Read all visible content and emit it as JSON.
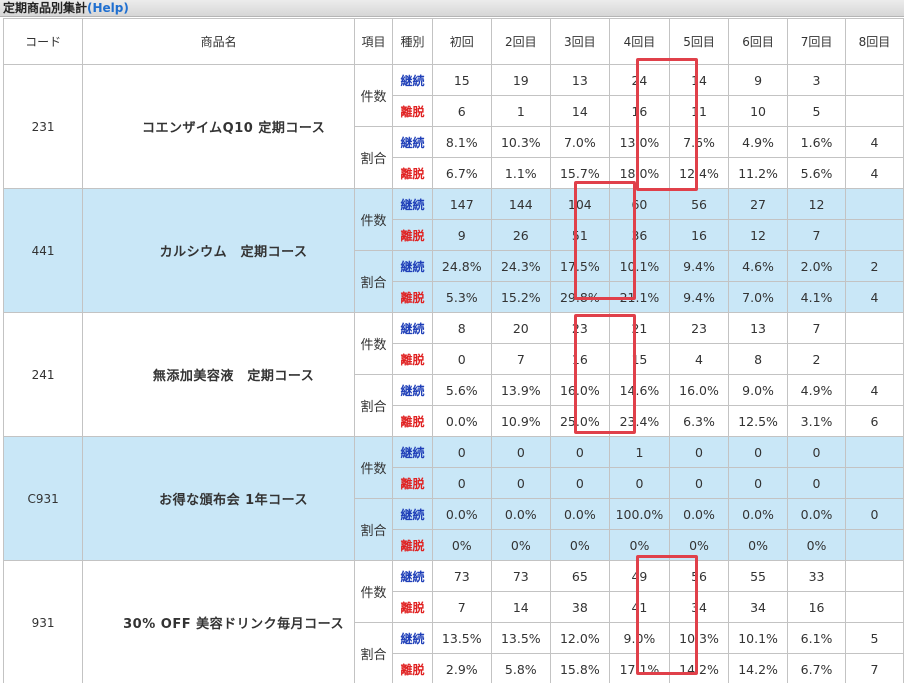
{
  "window": {
    "title": "定期商品別集計",
    "help": "(Help)"
  },
  "headers": [
    "コード",
    "商品名",
    "項目",
    "種別",
    "初回",
    "2回目",
    "3回目",
    "4回目",
    "5回目",
    "6回目",
    "7回目",
    "8回目"
  ],
  "groups": [
    {
      "code": "231",
      "name": "コエンザイムQ10 定期コース",
      "bg": "white",
      "rows": [
        {
          "item": "件数",
          "kind": "継続",
          "vals": [
            "15",
            "19",
            "13",
            "24",
            "14",
            "9",
            "3",
            ""
          ]
        },
        {
          "item": "件数",
          "kind": "離脱",
          "vals": [
            "6",
            "1",
            "14",
            "16",
            "11",
            "10",
            "5",
            ""
          ]
        },
        {
          "item": "割合",
          "kind": "継続",
          "vals": [
            "8.1%",
            "10.3%",
            "7.0%",
            "13.0%",
            "7.6%",
            "4.9%",
            "1.6%",
            "4"
          ]
        },
        {
          "item": "割合",
          "kind": "離脱",
          "vals": [
            "6.7%",
            "1.1%",
            "15.7%",
            "18.0%",
            "12.4%",
            "11.2%",
            "5.6%",
            "4"
          ]
        }
      ]
    },
    {
      "code": "441",
      "name": "カルシウム　定期コース",
      "bg": "blue",
      "rows": [
        {
          "item": "件数",
          "kind": "継続",
          "vals": [
            "147",
            "144",
            "104",
            "60",
            "56",
            "27",
            "12",
            ""
          ]
        },
        {
          "item": "件数",
          "kind": "離脱",
          "vals": [
            "9",
            "26",
            "51",
            "36",
            "16",
            "12",
            "7",
            ""
          ]
        },
        {
          "item": "割合",
          "kind": "継続",
          "vals": [
            "24.8%",
            "24.3%",
            "17.5%",
            "10.1%",
            "9.4%",
            "4.6%",
            "2.0%",
            "2"
          ]
        },
        {
          "item": "割合",
          "kind": "離脱",
          "vals": [
            "5.3%",
            "15.2%",
            "29.8%",
            "21.1%",
            "9.4%",
            "7.0%",
            "4.1%",
            "4"
          ]
        }
      ]
    },
    {
      "code": "241",
      "name": "無添加美容液　定期コース",
      "bg": "white",
      "rows": [
        {
          "item": "件数",
          "kind": "継続",
          "vals": [
            "8",
            "20",
            "23",
            "21",
            "23",
            "13",
            "7",
            ""
          ]
        },
        {
          "item": "件数",
          "kind": "離脱",
          "vals": [
            "0",
            "7",
            "16",
            "15",
            "4",
            "8",
            "2",
            ""
          ]
        },
        {
          "item": "割合",
          "kind": "継続",
          "vals": [
            "5.6%",
            "13.9%",
            "16.0%",
            "14.6%",
            "16.0%",
            "9.0%",
            "4.9%",
            "4"
          ]
        },
        {
          "item": "割合",
          "kind": "離脱",
          "vals": [
            "0.0%",
            "10.9%",
            "25.0%",
            "23.4%",
            "6.3%",
            "12.5%",
            "3.1%",
            "6"
          ]
        }
      ]
    },
    {
      "code": "C931",
      "name": "お得な頒布会 1年コース",
      "bg": "blue",
      "rows": [
        {
          "item": "件数",
          "kind": "継続",
          "vals": [
            "0",
            "0",
            "0",
            "1",
            "0",
            "0",
            "0",
            ""
          ]
        },
        {
          "item": "件数",
          "kind": "離脱",
          "vals": [
            "0",
            "0",
            "0",
            "0",
            "0",
            "0",
            "0",
            ""
          ]
        },
        {
          "item": "割合",
          "kind": "継続",
          "vals": [
            "0.0%",
            "0.0%",
            "0.0%",
            "100.0%",
            "0.0%",
            "0.0%",
            "0.0%",
            "0"
          ]
        },
        {
          "item": "割合",
          "kind": "離脱",
          "vals": [
            "0%",
            "0%",
            "0%",
            "0%",
            "0%",
            "0%",
            "0%",
            ""
          ]
        }
      ]
    },
    {
      "code": "931",
      "name": "30% OFF 美容ドリンク毎月コース",
      "bg": "white",
      "rows": [
        {
          "item": "件数",
          "kind": "継続",
          "vals": [
            "73",
            "73",
            "65",
            "49",
            "56",
            "55",
            "33",
            ""
          ]
        },
        {
          "item": "件数",
          "kind": "離脱",
          "vals": [
            "7",
            "14",
            "38",
            "41",
            "34",
            "34",
            "16",
            ""
          ]
        },
        {
          "item": "割合",
          "kind": "継続",
          "vals": [
            "13.5%",
            "13.5%",
            "12.0%",
            "9.0%",
            "10.3%",
            "10.1%",
            "6.1%",
            "5"
          ]
        },
        {
          "item": "割合",
          "kind": "離脱",
          "vals": [
            "2.9%",
            "5.8%",
            "15.8%",
            "17.1%",
            "14.2%",
            "14.2%",
            "6.7%",
            "7"
          ]
        }
      ]
    }
  ],
  "highlight_color": "#e0404a"
}
